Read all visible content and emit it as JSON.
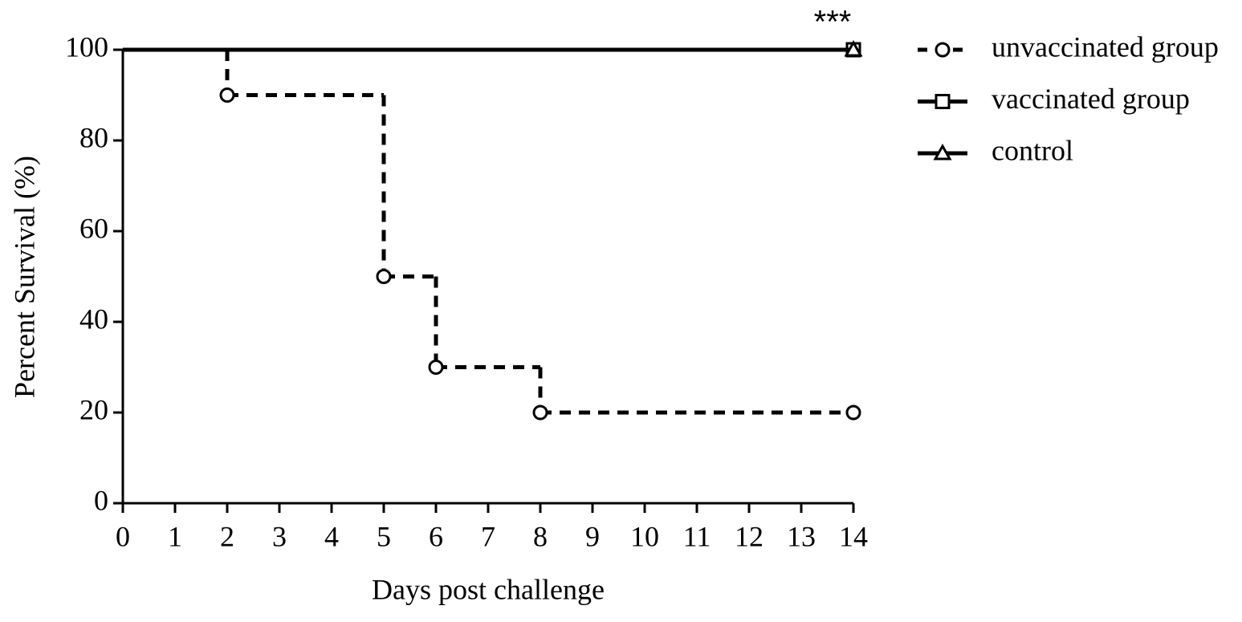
{
  "chart_data": {
    "type": "survival",
    "xlabel": "Days post challenge",
    "ylabel": "Percent Survival (%)",
    "annotation": "***",
    "xlim": [
      0,
      14
    ],
    "xticks": [
      0,
      1,
      2,
      3,
      4,
      5,
      6,
      7,
      8,
      9,
      10,
      11,
      12,
      13,
      14
    ],
    "ylim": [
      0,
      100
    ],
    "yticks": [
      0,
      20,
      40,
      60,
      80,
      100
    ],
    "series": [
      {
        "name": "unvaccinated group",
        "color": "#000000",
        "dashed": true,
        "marker": "circle",
        "x": [
          0,
          2,
          5,
          6,
          8,
          14
        ],
        "values": [
          100,
          90,
          50,
          30,
          20,
          20
        ]
      },
      {
        "name": "vaccinated group",
        "color": "#000000",
        "dashed": false,
        "marker": "square",
        "x": [
          0,
          14
        ],
        "values": [
          100,
          100
        ]
      },
      {
        "name": "control",
        "color": "#000000",
        "dashed": false,
        "marker": "triangle",
        "x": [
          0,
          14
        ],
        "values": [
          100,
          100
        ]
      }
    ]
  }
}
